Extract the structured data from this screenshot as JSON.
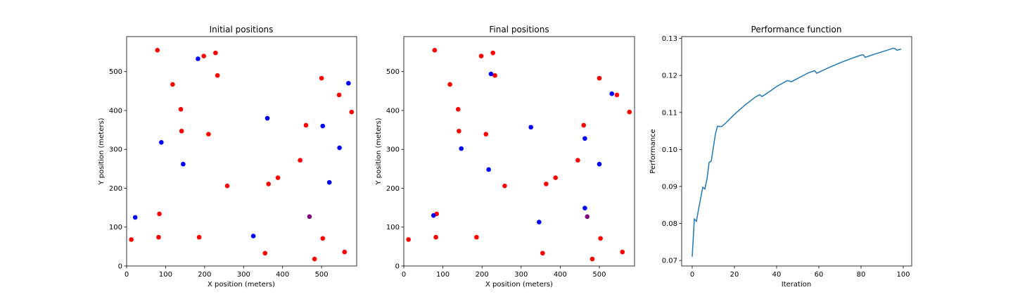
{
  "colors": {
    "red": "#ff0000",
    "blue": "#0000ff",
    "purple": "#800080",
    "line": "#1f77b4"
  },
  "chart_data": [
    {
      "type": "scatter",
      "title": "Initial positions",
      "xlabel": "X position (meters)",
      "ylabel": "Y position (meters)",
      "xlim": [
        0,
        590
      ],
      "ylim": [
        0,
        590
      ],
      "xticks": [
        0,
        100,
        200,
        300,
        400,
        500
      ],
      "yticks": [
        0,
        100,
        200,
        300,
        400,
        500
      ],
      "grid": false,
      "series": [
        {
          "color": "red",
          "points": [
            [
              79,
              555
            ],
            [
              228,
              548
            ],
            [
              198,
              540
            ],
            [
              233,
              490
            ],
            [
              500,
              483
            ],
            [
              118,
              467
            ],
            [
              545,
              440
            ],
            [
              139,
              403
            ],
            [
              577,
              396
            ],
            [
              460,
              362
            ],
            [
              141,
              347
            ],
            [
              210,
              339
            ],
            [
              445,
              272
            ],
            [
              388,
              227
            ],
            [
              258,
              206
            ],
            [
              364,
              211
            ],
            [
              84,
              134
            ],
            [
              82,
              74
            ],
            [
              186,
              74
            ],
            [
              12,
              68
            ],
            [
              503,
              71
            ],
            [
              355,
              33
            ],
            [
              559,
              36
            ],
            [
              482,
              18
            ]
          ]
        },
        {
          "color": "blue",
          "points": [
            [
              183,
              533
            ],
            [
              569,
              470
            ],
            [
              361,
              380
            ],
            [
              503,
              360
            ],
            [
              89,
              318
            ],
            [
              546,
              304
            ],
            [
              145,
              262
            ],
            [
              520,
              215
            ],
            [
              22,
              125
            ],
            [
              325,
              77
            ]
          ]
        },
        {
          "color": "purple",
          "points": [
            [
              469,
              127
            ]
          ]
        }
      ]
    },
    {
      "type": "scatter",
      "title": "Final positions",
      "xlabel": "X position (meters)",
      "ylabel": "Y position (meters)",
      "xlim": [
        0,
        590
      ],
      "ylim": [
        0,
        590
      ],
      "xticks": [
        0,
        100,
        200,
        300,
        400,
        500
      ],
      "yticks": [
        0,
        100,
        200,
        300,
        400,
        500
      ],
      "grid": false,
      "series": [
        {
          "color": "red",
          "points": [
            [
              79,
              555
            ],
            [
              228,
              548
            ],
            [
              198,
              540
            ],
            [
              233,
              490
            ],
            [
              500,
              483
            ],
            [
              118,
              467
            ],
            [
              545,
              440
            ],
            [
              139,
              403
            ],
            [
              577,
              396
            ],
            [
              460,
              362
            ],
            [
              141,
              347
            ],
            [
              210,
              339
            ],
            [
              445,
              272
            ],
            [
              388,
              227
            ],
            [
              258,
              206
            ],
            [
              364,
              211
            ],
            [
              84,
              134
            ],
            [
              82,
              74
            ],
            [
              186,
              74
            ],
            [
              12,
              68
            ],
            [
              503,
              71
            ],
            [
              355,
              33
            ],
            [
              559,
              36
            ],
            [
              482,
              18
            ]
          ]
        },
        {
          "color": "blue",
          "points": [
            [
              223,
              494
            ],
            [
              532,
              443
            ],
            [
              325,
              357
            ],
            [
              463,
              328
            ],
            [
              147,
              302
            ],
            [
              500,
              262
            ],
            [
              217,
              248
            ],
            [
              76,
              130
            ],
            [
              346,
              113
            ],
            [
              463,
              149
            ]
          ]
        },
        {
          "color": "purple",
          "points": [
            [
              469,
              127
            ]
          ]
        }
      ]
    },
    {
      "type": "line",
      "title": "Performance function",
      "xlabel": "Iteration",
      "ylabel": "Performance",
      "xlim": [
        -5,
        104
      ],
      "ylim": [
        0.0685,
        0.1305
      ],
      "xticks": [
        0,
        20,
        40,
        60,
        80,
        100
      ],
      "yticks": [
        0.07,
        0.08,
        0.09,
        0.1,
        0.11,
        0.12,
        0.13
      ],
      "ytick_labels": [
        "0.07",
        "0.08",
        "0.09",
        "0.10",
        "0.11",
        "0.12",
        "0.13"
      ],
      "grid": false,
      "series": [
        {
          "color": "line",
          "x": [
            0,
            1,
            2,
            3,
            4,
            5,
            6,
            7,
            8,
            9,
            10,
            11,
            12,
            13,
            14,
            16,
            20,
            25,
            30,
            32,
            33,
            35,
            40,
            45,
            46,
            47,
            50,
            55,
            58,
            59,
            65,
            70,
            75,
            80,
            81,
            82,
            85,
            90,
            95,
            96,
            97,
            99
          ],
          "y": [
            0.071,
            0.0812,
            0.0806,
            0.0838,
            0.0868,
            0.0898,
            0.0893,
            0.092,
            0.0965,
            0.0968,
            0.1005,
            0.1042,
            0.1063,
            0.1062,
            0.1062,
            0.1072,
            0.1095,
            0.112,
            0.1142,
            0.1148,
            0.1143,
            0.115,
            0.117,
            0.1186,
            0.1185,
            0.1183,
            0.1192,
            0.1207,
            0.1213,
            0.1206,
            0.1222,
            0.1234,
            0.1245,
            0.1255,
            0.1256,
            0.1249,
            0.1255,
            0.1264,
            0.1273,
            0.1273,
            0.1268,
            0.1271
          ]
        }
      ]
    }
  ]
}
